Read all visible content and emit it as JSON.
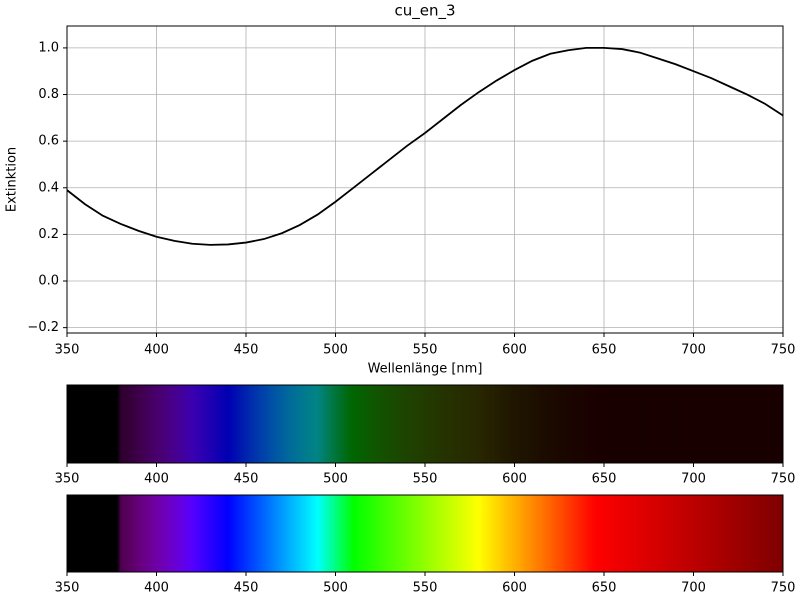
{
  "chart_data": [
    {
      "type": "line",
      "title": "cu_en_3",
      "x_label": "Wellenlänge [nm]",
      "y_label": "Extinktion",
      "x": [
        350,
        360,
        370,
        380,
        390,
        400,
        410,
        420,
        430,
        440,
        450,
        460,
        470,
        480,
        490,
        500,
        510,
        520,
        530,
        540,
        550,
        560,
        570,
        580,
        590,
        600,
        610,
        620,
        630,
        640,
        650,
        660,
        670,
        680,
        690,
        700,
        710,
        720,
        730,
        740,
        750
      ],
      "series": [
        {
          "color": "#000000",
          "values": [
            0.39,
            0.33,
            0.28,
            0.245,
            0.215,
            0.19,
            0.172,
            0.16,
            0.155,
            0.157,
            0.165,
            0.18,
            0.205,
            0.24,
            0.285,
            0.34,
            0.4,
            0.46,
            0.52,
            0.58,
            0.635,
            0.695,
            0.755,
            0.81,
            0.86,
            0.905,
            0.945,
            0.975,
            0.99,
            1.0,
            1.0,
            0.995,
            0.98,
            0.955,
            0.93,
            0.9,
            0.87,
            0.835,
            0.8,
            0.76,
            0.71
          ]
        }
      ],
      "xlim": [
        350,
        750
      ],
      "xticks": [
        350,
        400,
        450,
        500,
        550,
        600,
        650,
        700,
        750
      ],
      "ylim": [
        -0.223,
        1.094
      ],
      "yticks": [
        {
          "value": -0.2,
          "label": "−0.2"
        },
        {
          "value": 0,
          "label": "0.0"
        },
        {
          "value": 0.2,
          "label": "0.2"
        },
        {
          "value": 0.4,
          "label": "0.4"
        },
        {
          "value": 0.6,
          "label": "0.6"
        },
        {
          "value": 0.8,
          "label": "0.8"
        },
        {
          "value": 1.0,
          "label": "1.0"
        }
      ],
      "grid": true
    },
    {
      "type": "transmission_spectrum",
      "xlim": [
        350,
        750
      ],
      "xticks": [
        350,
        400,
        450,
        500,
        550,
        600,
        650,
        700,
        750
      ]
    },
    {
      "type": "spectrum",
      "xlim": [
        350,
        750
      ],
      "xticks": [
        350,
        400,
        450,
        500,
        550,
        600,
        650,
        700,
        750
      ]
    }
  ]
}
